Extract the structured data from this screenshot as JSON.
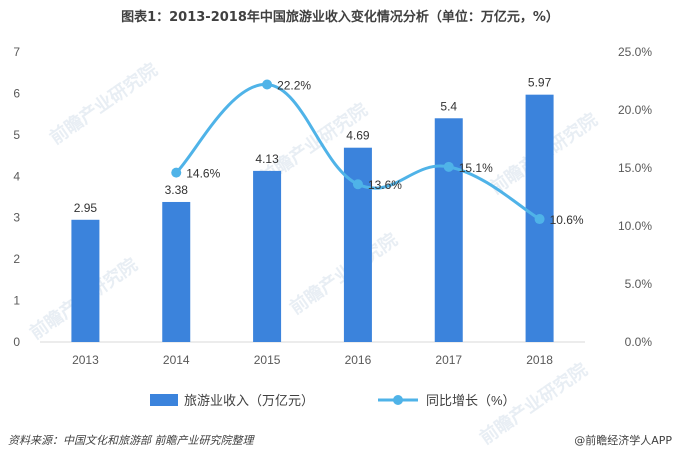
{
  "title": "图表1：2013-2018年中国旅游业收入变化情况分析（单位：万亿元，%）",
  "source": "资料来源：中国文化和旅游部 前瞻产业研究院整理",
  "credit": "@前瞻经济学人APP",
  "watermark": "前瞻产业研究院",
  "colors": {
    "bar": "#3b83dc",
    "line": "#4fb3e8",
    "axis_text": "#595959",
    "grid": "#d9d9d9"
  },
  "chart_data": {
    "type": "bar+line",
    "categories": [
      "2013",
      "2014",
      "2015",
      "2016",
      "2017",
      "2018"
    ],
    "series": [
      {
        "name": "旅游业收入（万亿元）",
        "type": "bar",
        "axis": "left",
        "values": [
          2.95,
          3.38,
          4.13,
          4.69,
          5.4,
          5.97
        ],
        "labels": [
          "2.95",
          "3.38",
          "4.13",
          "4.69",
          "5.4",
          "5.97"
        ]
      },
      {
        "name": "同比增长（%）",
        "type": "line",
        "axis": "right",
        "values": [
          null,
          14.6,
          22.2,
          13.6,
          15.1,
          10.6
        ],
        "labels": [
          "",
          "14.6%",
          "22.2%",
          "13.6%",
          "15.1%",
          "10.6%"
        ]
      }
    ],
    "y_left": {
      "min": 0,
      "max": 7,
      "ticks": [
        "0",
        "1",
        "2",
        "3",
        "4",
        "5",
        "6",
        "7"
      ]
    },
    "y_right": {
      "min": 0,
      "max": 25,
      "ticks": [
        "0.0%",
        "5.0%",
        "10.0%",
        "15.0%",
        "20.0%",
        "25.0%"
      ]
    }
  }
}
